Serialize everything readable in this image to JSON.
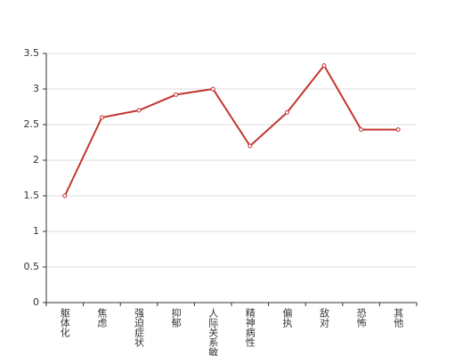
{
  "chart_data": {
    "type": "line",
    "categories": [
      "躯体化",
      "焦虑",
      "强迫症状",
      "抑郁",
      "人际关系敏感",
      "精神病性",
      "偏执",
      "敌对",
      "恐怖",
      "其他"
    ],
    "series": [
      {
        "color": "#c23531",
        "values": [
          1.5,
          2.6,
          2.7,
          2.92,
          3.0,
          2.2,
          2.67,
          3.33,
          2.43,
          2.43
        ]
      }
    ],
    "ylim": [
      0,
      3.5
    ],
    "yticks": [
      0,
      0.5,
      1,
      1.5,
      2,
      2.5,
      3,
      3.5
    ],
    "grid": true
  }
}
